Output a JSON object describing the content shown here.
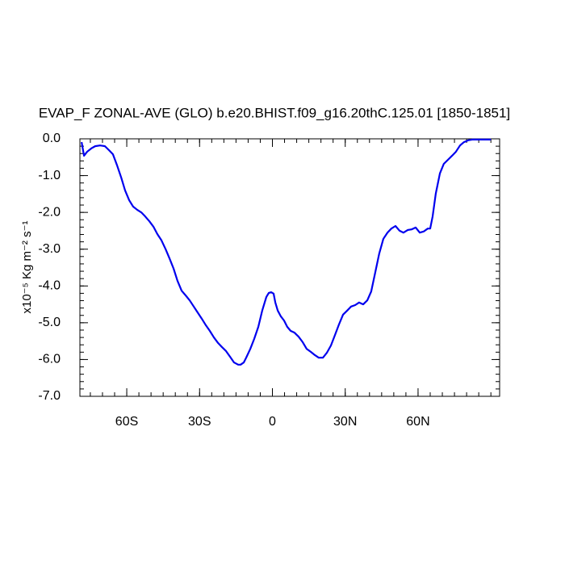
{
  "chart_data": {
    "type": "line",
    "title": "EVAP_F ZONAL-AVE (GLO) b.e20.BHIST.f09_g16.20thC.125.01 [1850-1851]",
    "ylabel": "x10⁻⁵ Kg m⁻² s⁻¹",
    "xlim": [
      -79.3,
      93.6
    ],
    "ylim": [
      -7.0,
      0.0
    ],
    "xticks": [
      {
        "value": -60,
        "label": "60S"
      },
      {
        "value": -30,
        "label": "30S"
      },
      0,
      {
        "value": 30,
        "label": "30N"
      },
      {
        "value": 60,
        "label": "60N"
      }
    ],
    "yticks": [
      {
        "value": 0,
        "label": "0.0"
      },
      {
        "value": -1,
        "label": "-1.0"
      },
      {
        "value": -2,
        "label": "-2.0"
      },
      {
        "value": -3,
        "label": "-3.0"
      },
      {
        "value": -4,
        "label": "-4.0"
      },
      {
        "value": -5,
        "label": "-5.0"
      },
      {
        "value": -6,
        "label": "-6.0"
      },
      {
        "value": -7,
        "label": "-7.0"
      }
    ],
    "x": [
      -78.6,
      -77.6,
      -76.3,
      -74.6,
      -73.0,
      -71.0,
      -69.0,
      -67.3,
      -65.7,
      -64.0,
      -62.3,
      -60.7,
      -59.0,
      -57.4,
      -55.7,
      -54.0,
      -52.4,
      -50.7,
      -49.0,
      -47.4,
      -45.7,
      -44.0,
      -42.4,
      -40.7,
      -39.1,
      -37.4,
      -35.7,
      -34.1,
      -32.4,
      -30.8,
      -29.1,
      -27.4,
      -25.8,
      -24.1,
      -22.4,
      -20.8,
      -19.1,
      -17.5,
      -15.8,
      -14.1,
      -13.1,
      -11.8,
      -10.8,
      -9.1,
      -7.5,
      -5.8,
      -4.2,
      -2.5,
      -1.5,
      -0.5,
      0.5,
      1.2,
      2.2,
      3.5,
      4.8,
      6.1,
      7.5,
      9.1,
      10.8,
      12.5,
      14.1,
      15.8,
      17.5,
      19.1,
      20.8,
      22.4,
      24.1,
      25.8,
      27.4,
      29.1,
      30.8,
      32.4,
      34.1,
      35.7,
      37.4,
      39.1,
      40.7,
      42.4,
      44.0,
      45.7,
      47.4,
      49.0,
      50.7,
      52.4,
      54.0,
      55.7,
      57.4,
      59.0,
      60.7,
      62.3,
      64.0,
      65.0,
      66.0,
      67.3,
      69.0,
      70.6,
      72.3,
      74.0,
      75.6,
      77.3,
      78.9,
      80.6,
      82.3,
      87.3,
      90.0
    ],
    "series": [
      {
        "name": "EVAP_F",
        "color": "#0000ee",
        "values": [
          -0.09,
          -0.46,
          -0.35,
          -0.26,
          -0.2,
          -0.18,
          -0.2,
          -0.31,
          -0.42,
          -0.72,
          -1.05,
          -1.4,
          -1.67,
          -1.84,
          -1.93,
          -2.0,
          -2.11,
          -2.24,
          -2.39,
          -2.59,
          -2.76,
          -3.0,
          -3.25,
          -3.53,
          -3.86,
          -4.13,
          -4.26,
          -4.39,
          -4.56,
          -4.72,
          -4.89,
          -5.07,
          -5.22,
          -5.4,
          -5.55,
          -5.66,
          -5.77,
          -5.92,
          -6.08,
          -6.14,
          -6.14,
          -6.08,
          -5.95,
          -5.71,
          -5.44,
          -5.11,
          -4.67,
          -4.3,
          -4.19,
          -4.17,
          -4.21,
          -4.45,
          -4.67,
          -4.83,
          -4.94,
          -5.11,
          -5.22,
          -5.27,
          -5.38,
          -5.53,
          -5.71,
          -5.79,
          -5.88,
          -5.95,
          -5.95,
          -5.82,
          -5.62,
          -5.33,
          -5.05,
          -4.78,
          -4.67,
          -4.56,
          -4.52,
          -4.45,
          -4.5,
          -4.39,
          -4.15,
          -3.62,
          -3.12,
          -2.72,
          -2.55,
          -2.44,
          -2.37,
          -2.5,
          -2.55,
          -2.48,
          -2.46,
          -2.41,
          -2.55,
          -2.52,
          -2.44,
          -2.44,
          -2.11,
          -1.49,
          -0.94,
          -0.68,
          -0.57,
          -0.46,
          -0.35,
          -0.18,
          -0.09,
          -0.04,
          -0.02,
          -0.02,
          -0.02
        ]
      }
    ]
  }
}
